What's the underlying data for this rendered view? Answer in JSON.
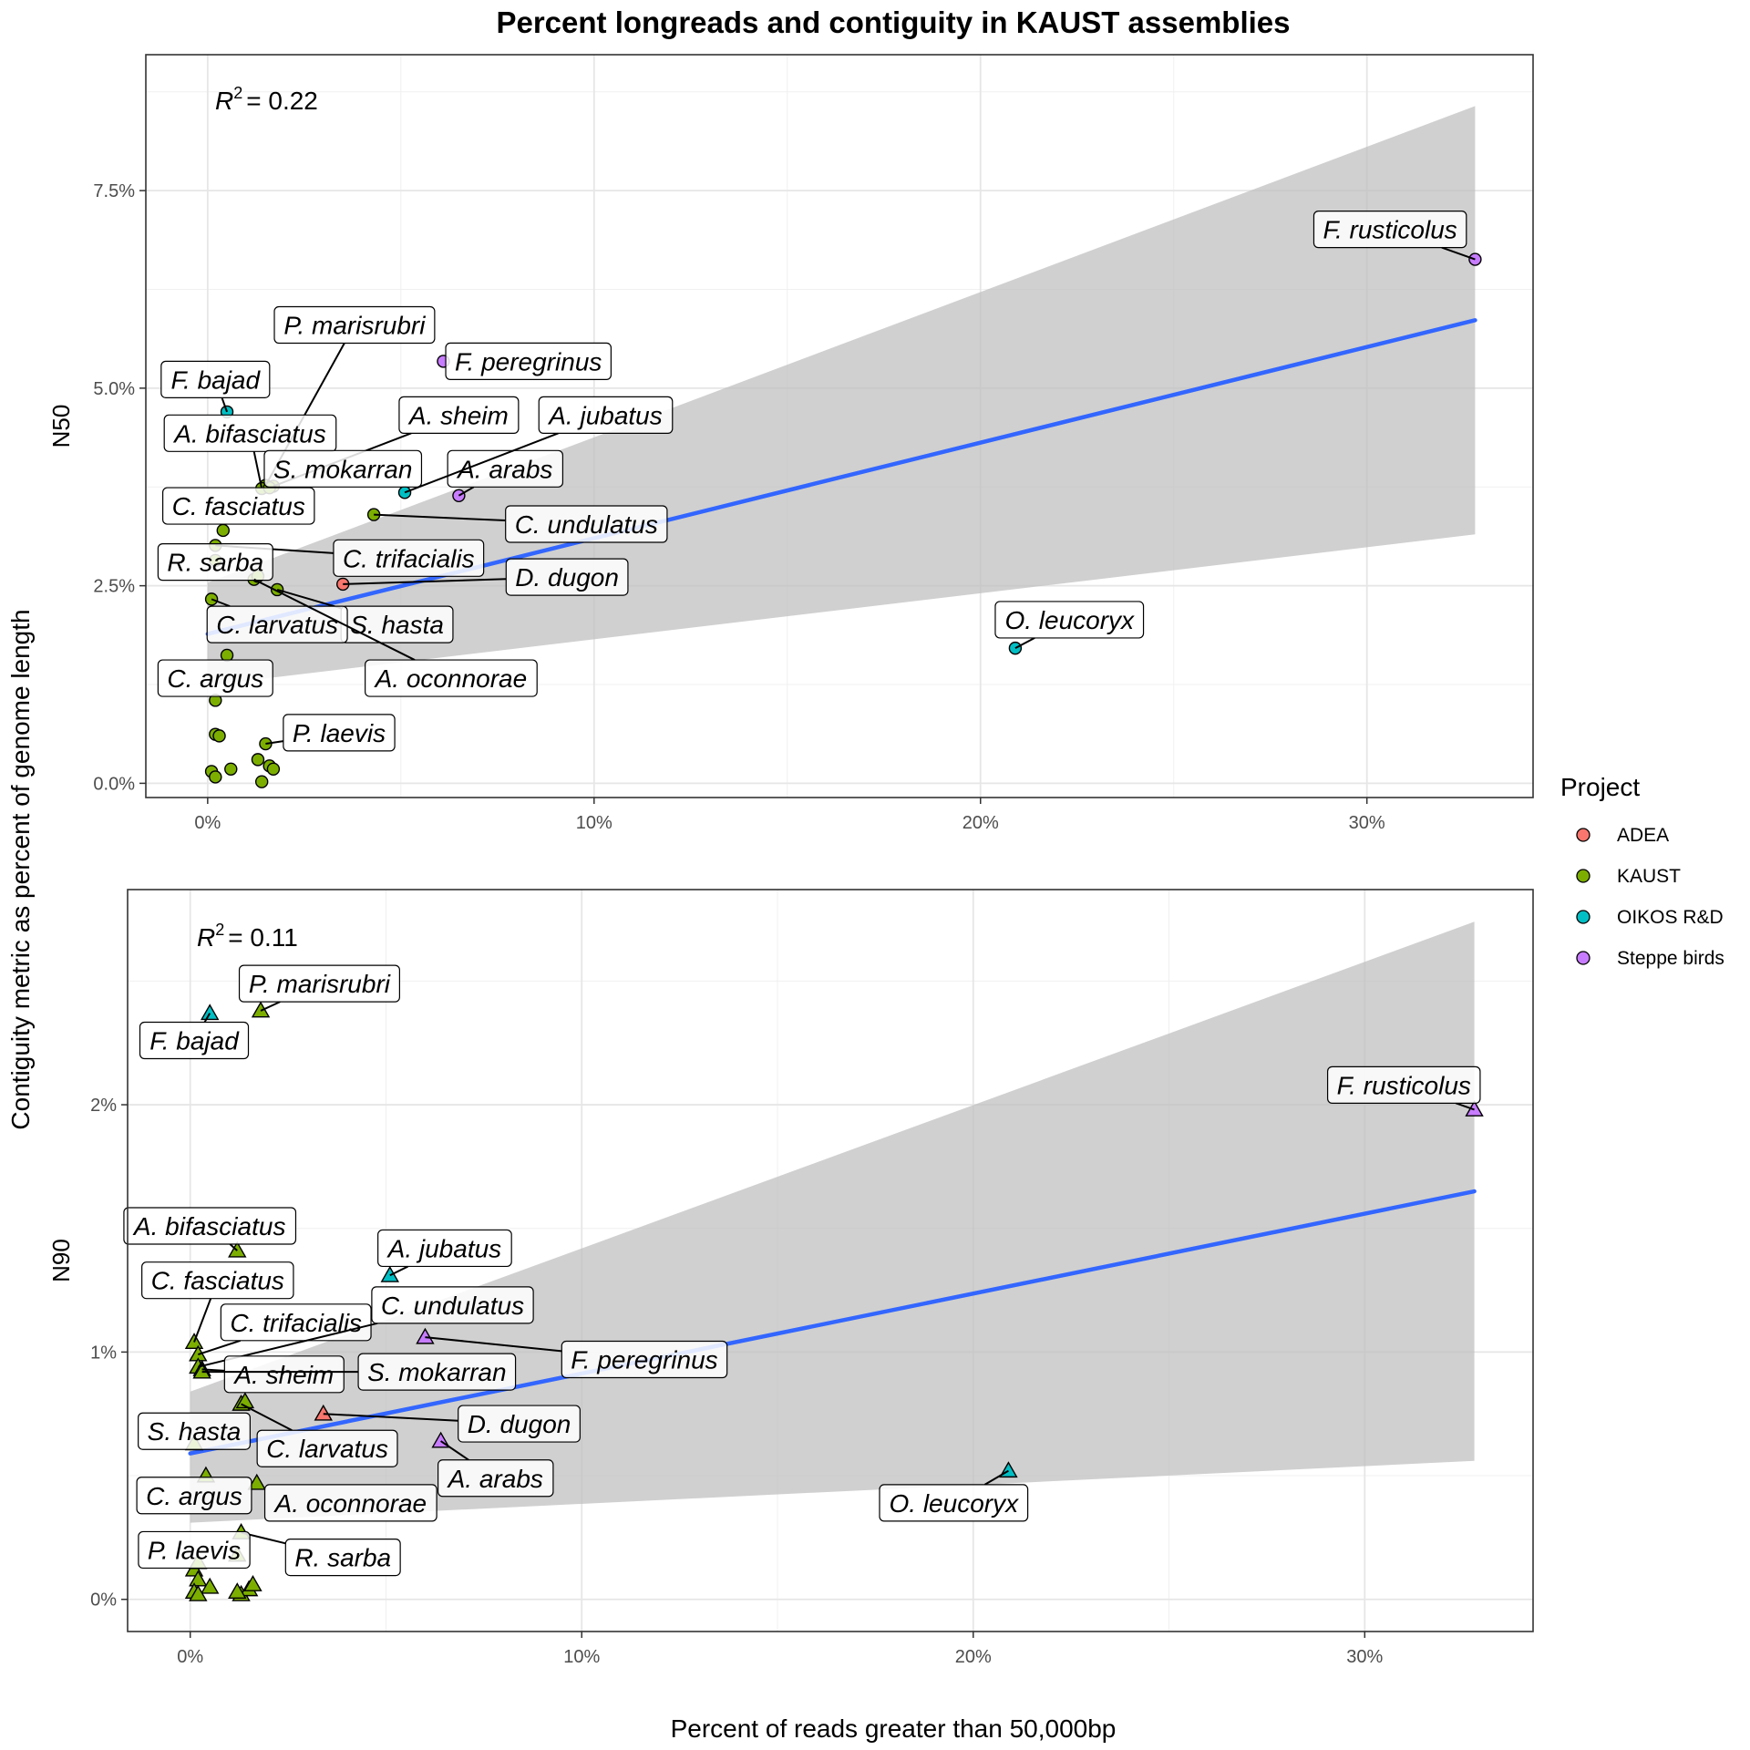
{
  "chart_data": {
    "type": "scatter",
    "title": "Percent longreads and contiguity in KAUST assemblies",
    "xlabel": "Percent of reads greater than 50,000bp",
    "ylabel": "Contiguity metric as percent of genome length",
    "legend": {
      "title": "Project",
      "placement": "right",
      "entries": [
        {
          "name": "ADEA",
          "color": "#F8766D"
        },
        {
          "name": "KAUST",
          "color": "#7CAE00"
        },
        {
          "name": "OIKOS R&D",
          "color": "#00BFC4"
        },
        {
          "name": "Steppe birds",
          "color": "#C77CFF"
        }
      ]
    },
    "trend_color": "#3366FF",
    "ribbon_color": "#BEBEBE",
    "panels": [
      {
        "metric": "N50",
        "r2_text": "= 0.22",
        "r2_label": "R",
        "r2_superscript": "2",
        "shape": "circle",
        "xlim": [
          -0.016,
          0.343
        ],
        "ylim": [
          -0.0018,
          0.0922
        ],
        "x_ticks": [
          0,
          0.1,
          0.2,
          0.3
        ],
        "x_tick_labels": [
          "0%",
          "10%",
          "20%",
          "30%"
        ],
        "y_ticks": [
          0,
          0.025,
          0.05,
          0.075
        ],
        "y_tick_labels": [
          "0.0%",
          "2.5%",
          "5.0%",
          "7.5%"
        ],
        "trend": {
          "x": [
            0.0,
            0.328
          ],
          "y": [
            0.0189,
            0.0586
          ]
        },
        "ribbon": {
          "x": [
            0.0,
            0.328
          ],
          "upper": [
            0.0254,
            0.0857
          ],
          "lower": [
            0.0124,
            0.0315
          ]
        },
        "points": [
          {
            "x": 0.328,
            "y": 0.0663,
            "project": "Steppe birds",
            "label": "F. rusticolus",
            "lx": 0.306,
            "ly": 0.0701
          },
          {
            "x": 0.061,
            "y": 0.0534,
            "project": "Steppe birds",
            "label": "F. peregrinus",
            "lx": 0.083,
            "ly": 0.0534
          },
          {
            "x": 0.065,
            "y": 0.0364,
            "project": "Steppe birds",
            "label": "A. arabs",
            "lx": 0.077,
            "ly": 0.0398
          },
          {
            "x": 0.051,
            "y": 0.0368,
            "project": "OIKOS R&D",
            "label": "A. jubatus",
            "lx": 0.103,
            "ly": 0.0466
          },
          {
            "x": 0.005,
            "y": 0.047,
            "project": "OIKOS R&D",
            "label": "F. bajad",
            "lx": 0.002,
            "ly": 0.0511
          },
          {
            "x": 0.209,
            "y": 0.0171,
            "project": "OIKOS R&D",
            "label": "O. leucoryx",
            "lx": 0.223,
            "ly": 0.0207
          },
          {
            "x": 0.035,
            "y": 0.0252,
            "project": "ADEA",
            "label": "D. dugon",
            "lx": 0.093,
            "ly": 0.0261
          },
          {
            "x": 0.043,
            "y": 0.034,
            "project": "KAUST",
            "label": "C. undulatus",
            "lx": 0.098,
            "ly": 0.0328
          },
          {
            "x": 0.015,
            "y": 0.0377,
            "project": "KAUST",
            "label": "P. marisrubri",
            "lx": 0.038,
            "ly": 0.058
          },
          {
            "x": 0.014,
            "y": 0.0373,
            "project": "KAUST",
            "label": "A. bifasciatus",
            "lx": 0.011,
            "ly": 0.0443
          },
          {
            "x": 0.017,
            "y": 0.0376,
            "project": "KAUST",
            "label": "A. sheim",
            "lx": 0.065,
            "ly": 0.0466
          },
          {
            "x": 0.016,
            "y": 0.0374,
            "project": "KAUST",
            "label": "S. mokarran",
            "lx": 0.035,
            "ly": 0.0398
          },
          {
            "x": 0.004,
            "y": 0.032,
            "project": "KAUST",
            "label": "C. fasciatus",
            "lx": 0.008,
            "ly": 0.0351
          },
          {
            "x": 0.002,
            "y": 0.0301,
            "project": "KAUST",
            "label": "C. trifacialis",
            "lx": 0.052,
            "ly": 0.0285
          },
          {
            "x": 0.002,
            "y": 0.0282,
            "project": "KAUST",
            "label": "R. sarba",
            "lx": 0.002,
            "ly": 0.028
          },
          {
            "x": 0.018,
            "y": 0.0245,
            "project": "KAUST",
            "label": "S. hasta",
            "lx": 0.049,
            "ly": 0.0201
          },
          {
            "x": 0.001,
            "y": 0.0233,
            "project": "KAUST",
            "label": "C. larvatus",
            "lx": 0.018,
            "ly": 0.0201
          },
          {
            "x": 0.012,
            "y": 0.0258,
            "project": "KAUST",
            "label": "A. oconnorae",
            "lx": 0.063,
            "ly": 0.0133
          },
          {
            "x": 0.002,
            "y": 0.0105,
            "project": "KAUST",
            "label": "C. argus",
            "lx": 0.002,
            "ly": 0.0133
          },
          {
            "x": 0.015,
            "y": 0.005,
            "project": "KAUST",
            "label": "P. laevis",
            "lx": 0.034,
            "ly": 0.0064
          },
          {
            "x": 0.013,
            "y": 0.0262,
            "project": "KAUST"
          },
          {
            "x": 0.005,
            "y": 0.0162,
            "project": "KAUST"
          },
          {
            "x": 0.002,
            "y": 0.0062,
            "project": "KAUST"
          },
          {
            "x": 0.003,
            "y": 0.006,
            "project": "KAUST"
          },
          {
            "x": 0.006,
            "y": 0.0018,
            "project": "KAUST"
          },
          {
            "x": 0.001,
            "y": 0.0015,
            "project": "KAUST"
          },
          {
            "x": 0.002,
            "y": 0.0008,
            "project": "KAUST"
          },
          {
            "x": 0.013,
            "y": 0.003,
            "project": "KAUST"
          },
          {
            "x": 0.016,
            "y": 0.0022,
            "project": "KAUST"
          },
          {
            "x": 0.017,
            "y": 0.0018,
            "project": "KAUST"
          },
          {
            "x": 0.014,
            "y": 0.0002,
            "project": "KAUST"
          }
        ]
      },
      {
        "metric": "N90",
        "r2_text": "= 0.11",
        "r2_label": "R",
        "r2_superscript": "2",
        "shape": "triangle",
        "xlim": [
          -0.016,
          0.343
        ],
        "ylim": [
          -0.0013,
          0.0287
        ],
        "x_ticks": [
          0,
          0.1,
          0.2,
          0.3
        ],
        "x_tick_labels": [
          "0%",
          "10%",
          "20%",
          "30%"
        ],
        "y_ticks": [
          0,
          0.01,
          0.02
        ],
        "y_tick_labels": [
          "0%",
          "1%",
          "2%"
        ],
        "trend": {
          "x": [
            0.0,
            0.328
          ],
          "y": [
            0.0059,
            0.0165
          ]
        },
        "ribbon": {
          "x": [
            0.0,
            0.328
          ],
          "upper": [
            0.0084,
            0.0274
          ],
          "lower": [
            0.0031,
            0.0056
          ]
        },
        "points": [
          {
            "x": 0.328,
            "y": 0.0198,
            "project": "Steppe birds",
            "label": "F. rusticolus",
            "lx": 0.31,
            "ly": 0.0208
          },
          {
            "x": 0.06,
            "y": 0.0106,
            "project": "Steppe birds",
            "label": "F. peregrinus",
            "lx": 0.116,
            "ly": 0.0097
          },
          {
            "x": 0.064,
            "y": 0.0064,
            "project": "Steppe birds",
            "label": "A. arabs",
            "lx": 0.078,
            "ly": 0.0049
          },
          {
            "x": 0.051,
            "y": 0.0131,
            "project": "OIKOS R&D",
            "label": "A. jubatus",
            "lx": 0.065,
            "ly": 0.0142
          },
          {
            "x": 0.005,
            "y": 0.0237,
            "project": "OIKOS R&D",
            "label": "F. bajad",
            "lx": 0.001,
            "ly": 0.0226
          },
          {
            "x": 0.209,
            "y": 0.0052,
            "project": "OIKOS R&D",
            "label": "O. leucoryx",
            "lx": 0.195,
            "ly": 0.0039
          },
          {
            "x": 0.034,
            "y": 0.0075,
            "project": "ADEA",
            "label": "D. dugon",
            "lx": 0.084,
            "ly": 0.0071
          },
          {
            "x": 0.018,
            "y": 0.0238,
            "project": "KAUST",
            "label": "P. marisrubri",
            "lx": 0.033,
            "ly": 0.0249
          },
          {
            "x": 0.012,
            "y": 0.0141,
            "project": "KAUST",
            "label": "A. bifasciatus",
            "lx": 0.005,
            "ly": 0.0151
          },
          {
            "x": 0.001,
            "y": 0.0104,
            "project": "KAUST",
            "label": "C. fasciatus",
            "lx": 0.007,
            "ly": 0.0129
          },
          {
            "x": 0.002,
            "y": 0.0099,
            "project": "KAUST",
            "label": "C. trifacialis",
            "lx": 0.027,
            "ly": 0.0112
          },
          {
            "x": 0.002,
            "y": 0.0094,
            "project": "KAUST",
            "label": "C. undulatus",
            "lx": 0.067,
            "ly": 0.0119
          },
          {
            "x": 0.003,
            "y": 0.0093,
            "project": "KAUST",
            "label": "A. sheim",
            "lx": 0.024,
            "ly": 0.0091
          },
          {
            "x": 0.003,
            "y": 0.0092,
            "project": "KAUST",
            "label": "S. mokarran",
            "lx": 0.063,
            "ly": 0.0092
          },
          {
            "x": 0.001,
            "y": 0.0063,
            "project": "KAUST",
            "label": "S. hasta",
            "lx": 0.001,
            "ly": 0.0068
          },
          {
            "x": 0.013,
            "y": 0.0079,
            "project": "KAUST",
            "label": "C. larvatus",
            "lx": 0.035,
            "ly": 0.0061
          },
          {
            "x": 0.017,
            "y": 0.0047,
            "project": "KAUST",
            "label": "A. oconnorae",
            "lx": 0.041,
            "ly": 0.0039
          },
          {
            "x": 0.004,
            "y": 0.005,
            "project": "KAUST",
            "label": "C. argus",
            "lx": 0.001,
            "ly": 0.0042
          },
          {
            "x": 0.013,
            "y": 0.0027,
            "project": "KAUST",
            "label": "R. sarba",
            "lx": 0.039,
            "ly": 0.0017
          },
          {
            "x": 0.001,
            "y": 0.0012,
            "project": "KAUST",
            "label": "P. laevis",
            "lx": 0.001,
            "ly": 0.002
          },
          {
            "x": 0.014,
            "y": 0.008,
            "project": "KAUST"
          },
          {
            "x": 0.012,
            "y": 0.0018,
            "project": "KAUST"
          },
          {
            "x": 0.002,
            "y": 0.0015,
            "project": "KAUST"
          },
          {
            "x": 0.002,
            "y": 0.0008,
            "project": "KAUST"
          },
          {
            "x": 0.005,
            "y": 0.0005,
            "project": "KAUST"
          },
          {
            "x": 0.001,
            "y": 0.0003,
            "project": "KAUST"
          },
          {
            "x": 0.002,
            "y": 0.0002,
            "project": "KAUST"
          },
          {
            "x": 0.013,
            "y": 0.0002,
            "project": "KAUST"
          },
          {
            "x": 0.015,
            "y": 0.0004,
            "project": "KAUST"
          },
          {
            "x": 0.016,
            "y": 0.0006,
            "project": "KAUST"
          },
          {
            "x": 0.012,
            "y": 0.0003,
            "project": "KAUST"
          }
        ]
      }
    ]
  }
}
